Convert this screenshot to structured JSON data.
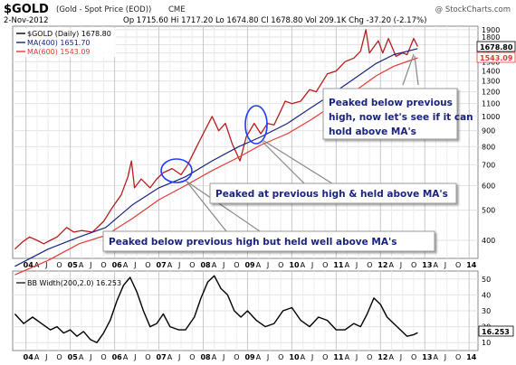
{
  "header": {
    "symbol": "$GOLD",
    "description": "(Gold - Spot Price (EOD))",
    "exchange": "CME",
    "date": "2-Nov-2012",
    "ohlc": "Op 1715.60  Hi 1717.20  Lo 1674.80  Cl 1678.80  Vol 209.1K  Chg -37.20 (-2.17%)",
    "credit": "@ StockCharts.com"
  },
  "colors": {
    "price": "#b71c1c",
    "ma400": "#1a237e",
    "ma600": "#e53935",
    "bbw": "#000000",
    "annotation_text": "#1a237e",
    "circle": "#1e3aff"
  },
  "legend": [
    {
      "text": "$GOLD (Daily) 1678.80",
      "color": "#000000"
    },
    {
      "text": "MA(400) 1651.70",
      "color": "#1a237e"
    },
    {
      "text": "MA(600) 1543.09",
      "color": "#e53935"
    }
  ],
  "lower_legend": "BB Width(200,2.0) 16.253",
  "value_labels": {
    "price": "1678.80",
    "ma600": "1543.09",
    "bbw": "16.253"
  },
  "annotations": [
    {
      "lines": [
        "Peaked below previous",
        "high, now let's see if it can",
        "hold above MA's"
      ]
    },
    {
      "lines": [
        "Peaked at previous high & held above MA's"
      ]
    },
    {
      "lines": [
        "Peaked below previous high but held well above MA's"
      ]
    }
  ],
  "x_labels": [
    [
      "04",
      true
    ],
    [
      "A",
      false
    ],
    [
      "J",
      false
    ],
    [
      "O",
      false
    ],
    [
      "05",
      true
    ],
    [
      "A",
      false
    ],
    [
      "J",
      false
    ],
    [
      "O",
      false
    ],
    [
      "06",
      true
    ],
    [
      "A",
      false
    ],
    [
      "J",
      false
    ],
    [
      "O",
      false
    ],
    [
      "07",
      true
    ],
    [
      "A",
      false
    ],
    [
      "J",
      false
    ],
    [
      "O",
      false
    ],
    [
      "08",
      true
    ],
    [
      "A",
      false
    ],
    [
      "J",
      false
    ],
    [
      "O",
      false
    ],
    [
      "09",
      true
    ],
    [
      "A",
      false
    ],
    [
      "J",
      false
    ],
    [
      "O",
      false
    ],
    [
      "10",
      true
    ],
    [
      "A",
      false
    ],
    [
      "J",
      false
    ],
    [
      "O",
      false
    ],
    [
      "11",
      true
    ],
    [
      "A",
      false
    ],
    [
      "J",
      false
    ],
    [
      "O",
      false
    ],
    [
      "12",
      true
    ],
    [
      "A",
      false
    ],
    [
      "J",
      false
    ],
    [
      "O",
      false
    ],
    [
      "13",
      true
    ],
    [
      "A",
      false
    ],
    [
      "J",
      false
    ],
    [
      "O",
      false
    ],
    [
      "14",
      true
    ]
  ],
  "chart_data": [
    {
      "type": "line",
      "scale": "log",
      "ylim": [
        350,
        1950
      ],
      "y_ticks": [
        400,
        500,
        600,
        700,
        800,
        900,
        1000,
        1100,
        1200,
        1300,
        1400,
        1500,
        1600,
        1700,
        1800,
        1900
      ],
      "x_start": 2003.7,
      "x_end": 2014.2,
      "series": [
        {
          "name": "$GOLD (Daily)",
          "values": [
            [
              2003.75,
              375
            ],
            [
              2003.92,
              395
            ],
            [
              2004.08,
              410
            ],
            [
              2004.25,
              400
            ],
            [
              2004.4,
              390
            ],
            [
              2004.55,
              400
            ],
            [
              2004.7,
              410
            ],
            [
              2004.92,
              440
            ],
            [
              2005.08,
              425
            ],
            [
              2005.25,
              430
            ],
            [
              2005.5,
              425
            ],
            [
              2005.75,
              460
            ],
            [
              2005.95,
              510
            ],
            [
              2006.15,
              560
            ],
            [
              2006.3,
              640
            ],
            [
              2006.38,
              720
            ],
            [
              2006.45,
              590
            ],
            [
              2006.6,
              630
            ],
            [
              2006.8,
              590
            ],
            [
              2006.95,
              630
            ],
            [
              2007.1,
              660
            ],
            [
              2007.3,
              680
            ],
            [
              2007.5,
              650
            ],
            [
              2007.65,
              700
            ],
            [
              2007.85,
              800
            ],
            [
              2008.0,
              880
            ],
            [
              2008.2,
              1000
            ],
            [
              2008.35,
              900
            ],
            [
              2008.5,
              950
            ],
            [
              2008.65,
              820
            ],
            [
              2008.83,
              720
            ],
            [
              2008.97,
              860
            ],
            [
              2009.15,
              950
            ],
            [
              2009.3,
              880
            ],
            [
              2009.45,
              950
            ],
            [
              2009.6,
              940
            ],
            [
              2009.85,
              1120
            ],
            [
              2010.0,
              1100
            ],
            [
              2010.2,
              1120
            ],
            [
              2010.4,
              1220
            ],
            [
              2010.55,
              1200
            ],
            [
              2010.8,
              1370
            ],
            [
              2011.0,
              1400
            ],
            [
              2011.2,
              1500
            ],
            [
              2011.4,
              1540
            ],
            [
              2011.55,
              1620
            ],
            [
              2011.67,
              1900
            ],
            [
              2011.75,
              1600
            ],
            [
              2011.95,
              1750
            ],
            [
              2012.05,
              1600
            ],
            [
              2012.18,
              1780
            ],
            [
              2012.35,
              1560
            ],
            [
              2012.5,
              1600
            ],
            [
              2012.6,
              1580
            ],
            [
              2012.75,
              1780
            ],
            [
              2012.84,
              1678.8
            ]
          ]
        },
        {
          "name": "MA(400)",
          "values": [
            [
              2003.75,
              330
            ],
            [
              2004.5,
              375
            ],
            [
              2005.2,
              410
            ],
            [
              2005.8,
              440
            ],
            [
              2006.4,
              520
            ],
            [
              2007.0,
              590
            ],
            [
              2007.6,
              640
            ],
            [
              2008.2,
              720
            ],
            [
              2008.8,
              800
            ],
            [
              2009.3,
              860
            ],
            [
              2009.9,
              950
            ],
            [
              2010.4,
              1060
            ],
            [
              2010.9,
              1180
            ],
            [
              2011.4,
              1320
            ],
            [
              2011.9,
              1480
            ],
            [
              2012.3,
              1580
            ],
            [
              2012.84,
              1651.7
            ]
          ]
        },
        {
          "name": "MA(600)",
          "values": [
            [
              2003.75,
              310
            ],
            [
              2004.5,
              345
            ],
            [
              2005.2,
              390
            ],
            [
              2005.8,
              415
            ],
            [
              2006.4,
              470
            ],
            [
              2007.0,
              540
            ],
            [
              2007.6,
              600
            ],
            [
              2008.2,
              670
            ],
            [
              2008.8,
              740
            ],
            [
              2009.3,
              810
            ],
            [
              2009.9,
              880
            ],
            [
              2010.4,
              970
            ],
            [
              2010.9,
              1080
            ],
            [
              2011.4,
              1200
            ],
            [
              2011.9,
              1350
            ],
            [
              2012.3,
              1450
            ],
            [
              2012.84,
              1543.09
            ]
          ]
        }
      ]
    },
    {
      "type": "line",
      "ylim": [
        5,
        55
      ],
      "y_ticks": [
        10,
        20,
        30,
        40,
        50
      ],
      "x_start": 2003.7,
      "x_end": 2014.2,
      "series": [
        {
          "name": "BB Width(200,2.0)",
          "values": [
            [
              2003.75,
              28
            ],
            [
              2003.95,
              22
            ],
            [
              2004.15,
              26
            ],
            [
              2004.35,
              22
            ],
            [
              2004.55,
              18
            ],
            [
              2004.7,
              20
            ],
            [
              2004.85,
              16
            ],
            [
              2005.0,
              18
            ],
            [
              2005.15,
              14
            ],
            [
              2005.3,
              17
            ],
            [
              2005.45,
              12
            ],
            [
              2005.6,
              10
            ],
            [
              2005.75,
              16
            ],
            [
              2005.9,
              24
            ],
            [
              2006.05,
              36
            ],
            [
              2006.2,
              46
            ],
            [
              2006.35,
              51
            ],
            [
              2006.5,
              42
            ],
            [
              2006.65,
              30
            ],
            [
              2006.8,
              20
            ],
            [
              2006.95,
              22
            ],
            [
              2007.1,
              28
            ],
            [
              2007.25,
              20
            ],
            [
              2007.45,
              18
            ],
            [
              2007.6,
              18
            ],
            [
              2007.8,
              26
            ],
            [
              2007.95,
              38
            ],
            [
              2008.1,
              48
            ],
            [
              2008.25,
              52
            ],
            [
              2008.4,
              44
            ],
            [
              2008.55,
              40
            ],
            [
              2008.7,
              30
            ],
            [
              2008.85,
              26
            ],
            [
              2009.0,
              30
            ],
            [
              2009.2,
              24
            ],
            [
              2009.4,
              20
            ],
            [
              2009.6,
              22
            ],
            [
              2009.8,
              30
            ],
            [
              2010.0,
              32
            ],
            [
              2010.2,
              24
            ],
            [
              2010.4,
              20
            ],
            [
              2010.6,
              26
            ],
            [
              2010.8,
              24
            ],
            [
              2011.0,
              18
            ],
            [
              2011.2,
              18
            ],
            [
              2011.4,
              22
            ],
            [
              2011.55,
              20
            ],
            [
              2011.7,
              28
            ],
            [
              2011.85,
              38
            ],
            [
              2012.0,
              34
            ],
            [
              2012.15,
              26
            ],
            [
              2012.3,
              22
            ],
            [
              2012.45,
              18
            ],
            [
              2012.6,
              14
            ],
            [
              2012.75,
              15
            ],
            [
              2012.84,
              16.253
            ]
          ]
        }
      ]
    }
  ]
}
